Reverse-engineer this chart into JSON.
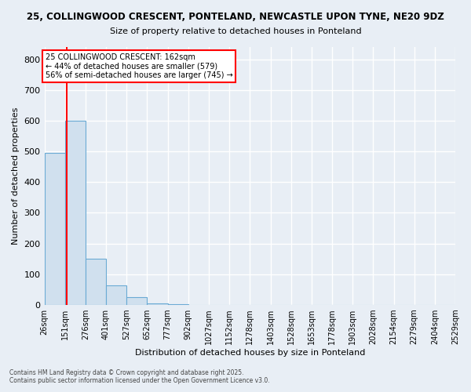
{
  "title_line1": "25, COLLINGWOOD CRESCENT, PONTELAND, NEWCASTLE UPON TYNE, NE20 9DZ",
  "title_line2": "Size of property relative to detached houses in Ponteland",
  "xlabel": "Distribution of detached houses by size in Ponteland",
  "ylabel": "Number of detached properties",
  "bar_edges": [
    26,
    151,
    276,
    401,
    527,
    652,
    777,
    902,
    1027,
    1152,
    1278,
    1403,
    1528,
    1653,
    1778,
    1903,
    2028,
    2154,
    2279,
    2404,
    2529
  ],
  "bar_heights": [
    495,
    600,
    150,
    65,
    25,
    5,
    2,
    1,
    0,
    0,
    0,
    0,
    0,
    0,
    0,
    0,
    0,
    0,
    0,
    0
  ],
  "bar_color": "#d0e0ee",
  "bar_edge_color": "#6aaad4",
  "red_line_x": 162,
  "annotation_text": "25 COLLINGWOOD CRESCENT: 162sqm\n← 44% of detached houses are smaller (579)\n56% of semi-detached houses are larger (745) →",
  "annotation_box_color": "white",
  "annotation_box_edge_color": "red",
  "ylim": [
    0,
    840
  ],
  "yticks": [
    0,
    100,
    200,
    300,
    400,
    500,
    600,
    700,
    800
  ],
  "tick_labels": [
    "26sqm",
    "151sqm",
    "276sqm",
    "401sqm",
    "527sqm",
    "652sqm",
    "777sqm",
    "902sqm",
    "1027sqm",
    "1152sqm",
    "1278sqm",
    "1403sqm",
    "1528sqm",
    "1653sqm",
    "1778sqm",
    "1903sqm",
    "2028sqm",
    "2154sqm",
    "2279sqm",
    "2404sqm",
    "2529sqm"
  ],
  "footer_text": "Contains HM Land Registry data © Crown copyright and database right 2025.\nContains public sector information licensed under the Open Government Licence v3.0.",
  "bg_color": "#e8eef5",
  "grid_color": "#ffffff"
}
